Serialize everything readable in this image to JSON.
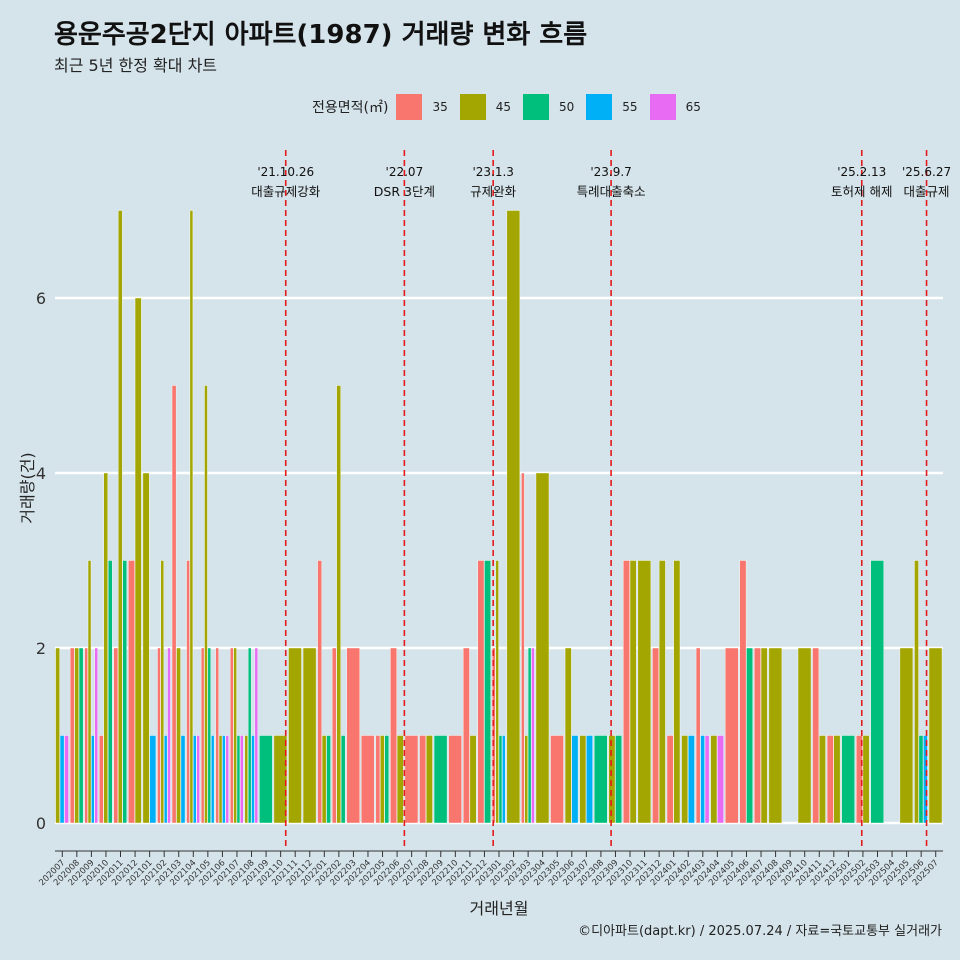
{
  "title": "용운주공2단지 아파트(1987) 거래량 변화 흐름",
  "subtitle": "최근 5년 한정 확대 차트",
  "caption": "©디아파트(dapt.kr) / 2025.07.24 / 자료=국토교통부 실거래가",
  "legend": {
    "title": "전용면적(㎡)",
    "items": [
      {
        "label": "35",
        "color": "#f8766d"
      },
      {
        "label": "45",
        "color": "#a3a500"
      },
      {
        "label": "50",
        "color": "#00bf7d"
      },
      {
        "label": "55",
        "color": "#00b0f6"
      },
      {
        "label": "65",
        "color": "#e76bf3"
      }
    ]
  },
  "chart_data": {
    "type": "bar",
    "xlabel": "거래년월",
    "ylabel": "거래량(건)",
    "ylim": [
      0,
      7
    ],
    "y_ticks": [
      0,
      2,
      4,
      6
    ],
    "categories": [
      "202007",
      "202008",
      "202009",
      "202010",
      "202011",
      "202012",
      "202101",
      "202102",
      "202103",
      "202104",
      "202105",
      "202106",
      "202107",
      "202108",
      "202109",
      "202110",
      "202111",
      "202112",
      "202201",
      "202202",
      "202203",
      "202204",
      "202205",
      "202206",
      "202207",
      "202208",
      "202209",
      "202210",
      "202211",
      "202212",
      "202301",
      "202302",
      "202303",
      "202304",
      "202305",
      "202306",
      "202307",
      "202308",
      "202309",
      "202310",
      "202311",
      "202312",
      "202401",
      "202402",
      "202403",
      "202404",
      "202405",
      "202406",
      "202407",
      "202408",
      "202409",
      "202410",
      "202411",
      "202412",
      "202501",
      "202502",
      "202503",
      "202504",
      "202505",
      "202506",
      "202507"
    ],
    "series": [
      {
        "name": "35",
        "color": "#f8766d",
        "values": [
          null,
          2,
          2,
          1,
          2,
          3,
          null,
          2,
          5,
          3,
          2,
          2,
          2,
          null,
          null,
          null,
          null,
          null,
          3,
          2,
          2,
          1,
          1,
          2,
          1,
          1,
          null,
          1,
          2,
          3,
          2,
          null,
          4,
          null,
          1,
          null,
          null,
          null,
          null,
          3,
          null,
          2,
          1,
          null,
          2,
          null,
          2,
          3,
          2,
          null,
          null,
          null,
          2,
          1,
          null,
          1,
          null,
          null,
          null,
          null,
          null
        ]
      },
      {
        "name": "45",
        "color": "#a3a500",
        "values": [
          2,
          2,
          3,
          4,
          7,
          6,
          4,
          3,
          2,
          7,
          5,
          1,
          2,
          1,
          null,
          1,
          2,
          2,
          1,
          5,
          null,
          null,
          1,
          1,
          null,
          1,
          null,
          null,
          1,
          null,
          3,
          7,
          1,
          4,
          null,
          2,
          1,
          null,
          1,
          3,
          3,
          3,
          3,
          1,
          null,
          1,
          null,
          null,
          2,
          2,
          null,
          2,
          1,
          1,
          null,
          1,
          null,
          null,
          2,
          3,
          2
        ]
      },
      {
        "name": "50",
        "color": "#00bf7d",
        "values": [
          null,
          2,
          null,
          3,
          3,
          null,
          null,
          null,
          null,
          null,
          2,
          null,
          1,
          2,
          1,
          null,
          null,
          null,
          1,
          1,
          null,
          null,
          1,
          null,
          null,
          null,
          1,
          null,
          null,
          3,
          1,
          null,
          2,
          null,
          null,
          null,
          null,
          1,
          1,
          null,
          null,
          null,
          null,
          null,
          null,
          null,
          null,
          2,
          null,
          null,
          null,
          null,
          null,
          null,
          1,
          null,
          3,
          null,
          null,
          1,
          null
        ]
      },
      {
        "name": "55",
        "color": "#00b0f6",
        "values": [
          1,
          null,
          1,
          null,
          null,
          null,
          1,
          1,
          1,
          1,
          1,
          1,
          null,
          1,
          null,
          null,
          null,
          null,
          null,
          null,
          null,
          null,
          null,
          null,
          null,
          null,
          null,
          null,
          null,
          null,
          1,
          null,
          null,
          null,
          null,
          1,
          1,
          null,
          null,
          null,
          null,
          null,
          null,
          1,
          1,
          null,
          null,
          null,
          null,
          null,
          null,
          null,
          null,
          null,
          null,
          null,
          null,
          null,
          null,
          1,
          null
        ]
      },
      {
        "name": "65",
        "color": "#e76bf3",
        "values": [
          1,
          null,
          2,
          null,
          null,
          null,
          null,
          2,
          null,
          1,
          null,
          1,
          1,
          2,
          null,
          null,
          null,
          null,
          null,
          null,
          null,
          null,
          null,
          null,
          null,
          null,
          null,
          null,
          null,
          null,
          null,
          null,
          2,
          null,
          null,
          null,
          null,
          null,
          null,
          null,
          null,
          null,
          null,
          null,
          1,
          1,
          null,
          null,
          null,
          null,
          null,
          null,
          null,
          null,
          null,
          null,
          null,
          null,
          null,
          null,
          null
        ]
      }
    ],
    "events": [
      {
        "date": "'21.10.26",
        "label": "대출규제강화",
        "month": "202110",
        "position": 0.85
      },
      {
        "date": "'22.07",
        "label": "DSR 3단계",
        "month": "202207",
        "position": 0.0
      },
      {
        "date": "'23.1.3",
        "label": "규제완화",
        "month": "202301",
        "position": 0.1
      },
      {
        "date": "'23.9.7",
        "label": "특례대출축소",
        "month": "202309",
        "position": 0.2
      },
      {
        "date": "'25.2.13",
        "label": "토허제 해제",
        "month": "202502",
        "position": 0.42
      },
      {
        "date": "'25.6.27",
        "label": "대출규제",
        "month": "202506",
        "position": 0.87
      }
    ],
    "grid": true
  }
}
